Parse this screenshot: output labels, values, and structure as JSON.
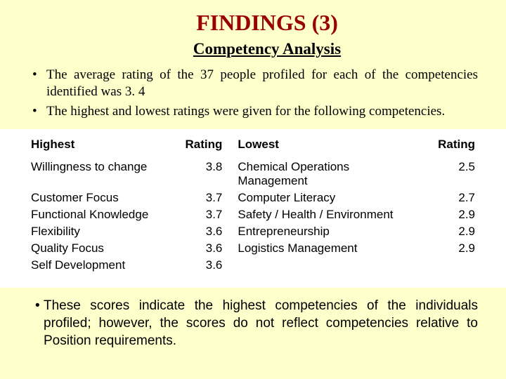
{
  "background_color": "#ffffcc",
  "title": {
    "text": "FINDINGS (3)",
    "color": "#990000",
    "fontsize": 32,
    "font_family": "Times New Roman",
    "font_weight": "bold"
  },
  "subtitle": {
    "text": "Competency Analysis",
    "color": "#000000",
    "fontsize": 23,
    "font_family": "Times New Roman",
    "font_weight": "bold",
    "underline": true
  },
  "bullets_top": [
    "The average rating of the 37 people profiled for each of the competencies identified was 3. 4",
    "The highest and lowest ratings were given for the following competencies."
  ],
  "table": {
    "type": "table",
    "background_color": "#ffffff",
    "font_family": "Arial",
    "fontsize": 17,
    "columns": [
      "Highest",
      "Rating",
      "Lowest",
      "Rating"
    ],
    "rows": [
      [
        "Willingness to change",
        "3.8",
        "Chemical Operations Management",
        "2.5"
      ],
      [
        "Customer Focus",
        "3.7",
        "Computer Literacy",
        "2.7"
      ],
      [
        "Functional Knowledge",
        "3.7",
        "Safety / Health / Environment",
        "2.9"
      ],
      [
        "Flexibility",
        "3.6",
        "Entrepreneurship",
        "2.9"
      ],
      [
        "Quality Focus",
        "3.6",
        "Logistics Management",
        "2.9"
      ],
      [
        "Self Development",
        "3.6",
        "",
        ""
      ]
    ]
  },
  "note": {
    "text": "These scores indicate the highest competencies of the individuals profiled; however, the scores do not reflect competencies relative to Position requirements.",
    "font_family": "Comic Sans MS",
    "fontsize": 19
  }
}
